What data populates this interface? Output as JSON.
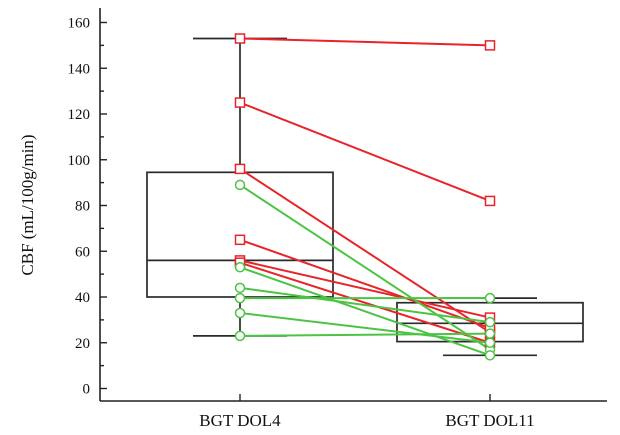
{
  "chart_data": {
    "type": "box",
    "ylabel": "CBF (mL/100g/min)",
    "xlabel": "",
    "title": "",
    "categories": [
      "BGT DOL4",
      "BGT DOL11"
    ],
    "ylim": [
      -5,
      165
    ],
    "yticks": [
      0,
      20,
      40,
      60,
      80,
      100,
      120,
      140,
      160
    ],
    "yminor_step": 10,
    "boxes": [
      {
        "category": "BGT DOL4",
        "whisker_low": 23,
        "q1": 40,
        "median": 56,
        "q3": 94.5,
        "whisker_high": 153
      },
      {
        "category": "BGT DOL11",
        "whisker_low": 14.5,
        "q1": 20.5,
        "median": 28.5,
        "q3": 37.5,
        "whisker_high": 39.5
      }
    ],
    "paired_series": [
      {
        "group": "red",
        "marker": "square",
        "color": "#e8242a",
        "pairs": [
          [
            153,
            150
          ],
          [
            125,
            82
          ],
          [
            96,
            24.5
          ],
          [
            65,
            26.5
          ],
          [
            56,
            31
          ],
          [
            55,
            20
          ]
        ]
      },
      {
        "group": "green",
        "marker": "circle",
        "color": "#4cc443",
        "pairs": [
          [
            89,
            17
          ],
          [
            53,
            14.5
          ],
          [
            44,
            29
          ],
          [
            39.5,
            39.5
          ],
          [
            33,
            20
          ],
          [
            23,
            24
          ]
        ]
      }
    ],
    "grid": false,
    "legend": "none"
  }
}
